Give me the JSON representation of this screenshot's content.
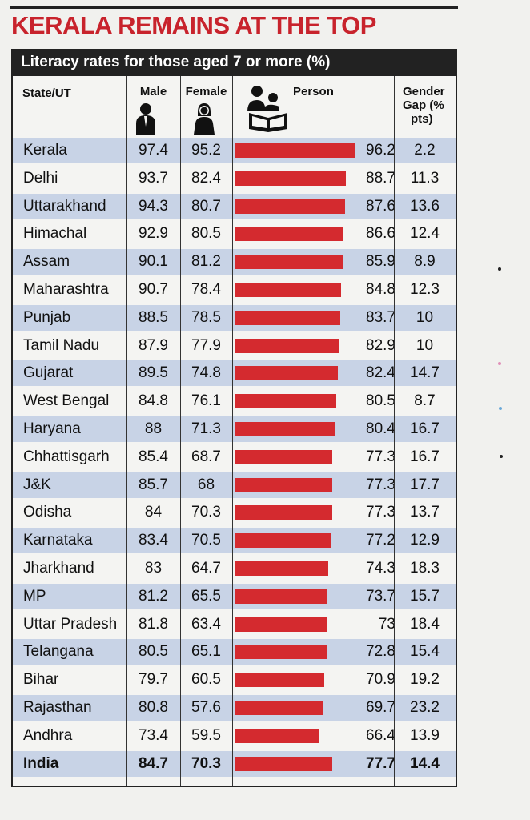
{
  "headline": "KERALA REMAINS AT THE TOP",
  "subtitle": "Literacy rates for those aged 7 or more (%)",
  "columns": {
    "state": "State/UT",
    "male": "Male",
    "female": "Female",
    "person": "Person",
    "gap": "Gender Gap (% pts)",
    "gap_lines": [
      "Gender",
      "Gap (%",
      "pts)"
    ]
  },
  "icons": {
    "male": "male-person-icon",
    "female": "female-person-icon",
    "person": "reading-family-icon"
  },
  "colors": {
    "headline": "#c8232c",
    "bar": "#d42a2f",
    "shade": "#c8d3e6",
    "header_bg": "#222222"
  },
  "chart_data": {
    "type": "table",
    "title": "KERALA REMAINS AT THE TOP",
    "subtitle": "Literacy rates for those aged 7 or more (%)",
    "columns": [
      "State/UT",
      "Male",
      "Female",
      "Person",
      "Gender Gap (% pts)"
    ],
    "rows": [
      {
        "state": "Kerala",
        "male": "97.4",
        "female": "95.2",
        "person": "96.2",
        "gap": "2.2"
      },
      {
        "state": "Delhi",
        "male": "93.7",
        "female": "82.4",
        "person": "88.7",
        "gap": "11.3"
      },
      {
        "state": "Uttarakhand",
        "male": "94.3",
        "female": "80.7",
        "person": "87.6",
        "gap": "13.6"
      },
      {
        "state": "Himachal",
        "male": "92.9",
        "female": "80.5",
        "person": "86.6",
        "gap": "12.4"
      },
      {
        "state": "Assam",
        "male": "90.1",
        "female": "81.2",
        "person": "85.9",
        "gap": "8.9"
      },
      {
        "state": "Maharashtra",
        "male": "90.7",
        "female": "78.4",
        "person": "84.8",
        "gap": "12.3"
      },
      {
        "state": "Punjab",
        "male": "88.5",
        "female": "78.5",
        "person": "83.7",
        "gap": "10"
      },
      {
        "state": "Tamil Nadu",
        "male": "87.9",
        "female": "77.9",
        "person": "82.9",
        "gap": "10"
      },
      {
        "state": "Gujarat",
        "male": "89.5",
        "female": "74.8",
        "person": "82.4",
        "gap": "14.7"
      },
      {
        "state": "West Bengal",
        "male": "84.8",
        "female": "76.1",
        "person": "80.5",
        "gap": "8.7"
      },
      {
        "state": "Haryana",
        "male": "88",
        "female": "71.3",
        "person": "80.4",
        "gap": "16.7"
      },
      {
        "state": "Chhattisgarh",
        "male": "85.4",
        "female": "68.7",
        "person": "77.3",
        "gap": "16.7"
      },
      {
        "state": "J&K",
        "male": "85.7",
        "female": "68",
        "person": "77.3",
        "gap": "17.7"
      },
      {
        "state": "Odisha",
        "male": "84",
        "female": "70.3",
        "person": "77.3",
        "gap": "13.7"
      },
      {
        "state": "Karnataka",
        "male": "83.4",
        "female": "70.5",
        "person": "77.2",
        "gap": "12.9"
      },
      {
        "state": "Jharkhand",
        "male": "83",
        "female": "64.7",
        "person": "74.3",
        "gap": "18.3"
      },
      {
        "state": "MP",
        "male": "81.2",
        "female": "65.5",
        "person": "73.7",
        "gap": "15.7"
      },
      {
        "state": "Uttar Pradesh",
        "male": "81.8",
        "female": "63.4",
        "person": "73",
        "gap": "18.4"
      },
      {
        "state": "Telangana",
        "male": "80.5",
        "female": "65.1",
        "person": "72.8",
        "gap": "15.4"
      },
      {
        "state": "Bihar",
        "male": "79.7",
        "female": "60.5",
        "person": "70.9",
        "gap": "19.2"
      },
      {
        "state": "Rajasthan",
        "male": "80.8",
        "female": "57.6",
        "person": "69.7",
        "gap": "23.2"
      },
      {
        "state": "Andhra",
        "male": "73.4",
        "female": "59.5",
        "person": "66.4",
        "gap": "13.9"
      },
      {
        "state": "India",
        "male": "84.7",
        "female": "70.3",
        "person": "77.7",
        "gap": "14.4",
        "total": true
      }
    ]
  }
}
